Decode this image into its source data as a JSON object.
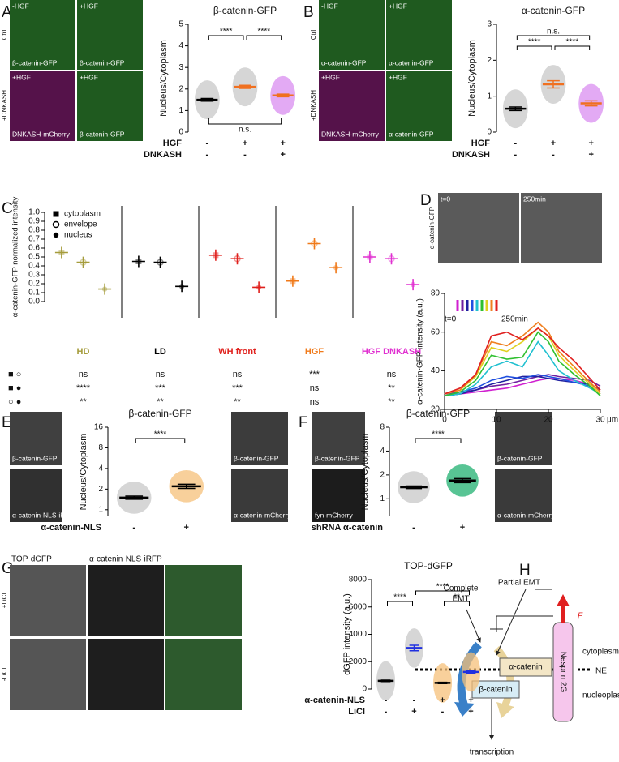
{
  "panel_labels": [
    "A",
    "B",
    "C",
    "D",
    "E",
    "F",
    "G",
    "H"
  ],
  "images": {
    "A": {
      "side": [
        "Ctrl",
        "+DNKASH"
      ],
      "tiles": [
        [
          "-HGF",
          "β-catenin-GFP"
        ],
        [
          "+HGF",
          "β-catenin-GFP"
        ],
        [
          "+HGF",
          "DNKASH-mCherry"
        ],
        [
          "+HGF",
          "β-catenin-GFP"
        ]
      ]
    },
    "B": {
      "side": [
        "Ctrl",
        "+DNKASH"
      ],
      "tiles": [
        [
          "-HGF",
          "α-catenin-GFP"
        ],
        [
          "+HGF",
          "α-catenin-GFP"
        ],
        [
          "+HGF",
          "DNKASH-mCherry"
        ],
        [
          "+HGF",
          "α-catenin-GFP"
        ]
      ]
    },
    "D": {
      "side": [
        "α-catenin-GFP"
      ],
      "tiles": [
        [
          "t=0"
        ],
        [
          "250min"
        ]
      ]
    },
    "E": {
      "tiles": [
        [
          "β-catenin-GFP"
        ],
        [
          "α-catenin-NLS-iRFP"
        ],
        [
          "β-catenin-GFP"
        ],
        [
          "α-catenin-mCherry"
        ]
      ]
    },
    "F": {
      "tiles": [
        [
          "β-catenin-GFP"
        ],
        [
          "fyn-mCherry"
        ],
        [
          "β-catenin-GFP"
        ],
        [
          "α-catenin-mCherry"
        ]
      ]
    },
    "G": {
      "headers": [
        "TOP-dGFP",
        "α-catenin-NLS-iRFP"
      ],
      "side": [
        "+LiCl",
        "-LiCl"
      ]
    }
  },
  "diagram": {
    "complete_emt": [
      "Complete",
      "EMT"
    ],
    "partial_emt": "Partial EMT",
    "force": "F",
    "nesprin": "Nesprin 2G",
    "alpha": "α-catenin",
    "beta": "β-catenin",
    "cytoplasm": "cytoplasm",
    "ne": "NE",
    "nucleoplasm": "nucleoplasm",
    "transcription": "transcription"
  },
  "chart_data": [
    {
      "type": "dotplot",
      "title": "β-catenin-GFP",
      "ylabel": "Nucleus/Cytoplasm",
      "ylim": [
        0,
        5
      ],
      "yticks": [
        0,
        1,
        2,
        3,
        4,
        5
      ],
      "values": [
        1.5,
        2.1,
        1.7
      ],
      "errors": [
        0.06,
        0.07,
        0.06
      ],
      "dot_colors": [
        "#c8c8c8",
        "#c8c8c8",
        "#d98ef0"
      ],
      "mean_colors": [
        "#000000",
        "#f07020",
        "#f07020"
      ],
      "rows": [
        {
          "name": "HGF",
          "values": [
            "-",
            "+",
            "+"
          ]
        },
        {
          "name": "DNKASH",
          "values": [
            "-",
            "-",
            "+"
          ]
        }
      ],
      "brackets": [
        {
          "from": 0,
          "to": 1,
          "label": "****"
        },
        {
          "from": 1,
          "to": 2,
          "label": "****"
        },
        {
          "from": 0,
          "to": 2,
          "label": "n.s.",
          "below": true
        }
      ]
    },
    {
      "type": "dotplot",
      "title": "α-catenin-GFP",
      "ylabel": "Nucleus/Cytoplasm",
      "ylim": [
        0,
        3
      ],
      "yticks": [
        0,
        1,
        2,
        3
      ],
      "values": [
        0.65,
        1.33,
        0.8
      ],
      "errors": [
        0.05,
        0.1,
        0.07
      ],
      "dot_colors": [
        "#c8c8c8",
        "#c8c8c8",
        "#d98ef0"
      ],
      "mean_colors": [
        "#000000",
        "#f07020",
        "#f07020"
      ],
      "rows": [
        {
          "name": "HGF",
          "values": [
            "-",
            "+",
            "+"
          ]
        },
        {
          "name": "DNKASH",
          "values": [
            "-",
            "-",
            "+"
          ]
        }
      ],
      "brackets": [
        {
          "from": 0,
          "to": 2,
          "label": "n.s."
        },
        {
          "from": 0,
          "to": 1,
          "label": "****"
        },
        {
          "from": 1,
          "to": 2,
          "label": "****"
        }
      ]
    },
    {
      "type": "dotplot_grouped",
      "ylabel": "α-catenin-GFP normalized intensity",
      "ylim": [
        0,
        1
      ],
      "yticks": [
        {
          "value": 0,
          "label": "0.0"
        },
        {
          "value": 0.1,
          "label": "0.1"
        },
        {
          "value": 0.2,
          "label": "0.2"
        },
        {
          "value": 0.3,
          "label": "0.3"
        },
        {
          "value": 0.4,
          "label": "0.4"
        },
        {
          "value": 0.5,
          "label": "0.5"
        },
        {
          "value": 0.6,
          "label": "0.6"
        },
        {
          "value": 0.7,
          "label": "0.7"
        },
        {
          "value": 0.8,
          "label": "0.8"
        },
        {
          "value": 0.9,
          "label": "0.9"
        },
        {
          "value": 1,
          "label": "1.0"
        }
      ],
      "categories": [
        "HD",
        "LD",
        "WH front",
        "HGF",
        "HGF DNKASH"
      ],
      "group_colors": [
        "#a59c3c",
        "#000000",
        "#e0201c",
        "#f07a1a",
        "#e030d0"
      ],
      "series": [
        {
          "name": "cytoplasm",
          "marker": "square",
          "values": [
            0.55,
            0.45,
            0.52,
            0.23,
            0.5
          ]
        },
        {
          "name": "envelope",
          "marker": "open-circle",
          "values": [
            0.44,
            0.44,
            0.48,
            0.65,
            0.48
          ]
        },
        {
          "name": "nucleus",
          "marker": "circle",
          "values": [
            0.14,
            0.17,
            0.16,
            0.38,
            0.19
          ]
        }
      ],
      "stats": [
        {
          "symbols": "■ ○",
          "values": [
            "ns",
            "ns",
            "ns",
            "***",
            "ns"
          ]
        },
        {
          "symbols": "■ ●",
          "values": [
            "****",
            "***",
            "***",
            "ns",
            "**"
          ]
        },
        {
          "symbols": "○ ●",
          "values": [
            "**",
            "**",
            "**",
            "ns",
            "**"
          ]
        }
      ]
    },
    {
      "type": "line",
      "ylabel": "α-catenin-GFP intensity (a.u.)",
      "xlabel": "μm",
      "legend_start": "t=0",
      "legend_end": "250min",
      "xlim": [
        0,
        30
      ],
      "xticks": [
        0,
        10,
        20,
        30
      ],
      "ylim": [
        20,
        80
      ],
      "yticks": [
        20,
        40,
        60,
        80
      ],
      "x": [
        0,
        3,
        6,
        9,
        12,
        15,
        18,
        20,
        22,
        25,
        28,
        30
      ],
      "series": [
        {
          "color": "#d020d0",
          "values": [
            27,
            28,
            29,
            30,
            31,
            33,
            35,
            36,
            36,
            35,
            33,
            30
          ]
        },
        {
          "color": "#7020a0",
          "values": [
            28,
            29,
            30,
            32,
            33,
            35,
            37,
            38,
            37,
            36,
            35,
            32
          ]
        },
        {
          "color": "#2020a0",
          "values": [
            27,
            28,
            30,
            33,
            35,
            37,
            37,
            36,
            35,
            34,
            33,
            30
          ]
        },
        {
          "color": "#2050e0",
          "values": [
            27,
            29,
            31,
            35,
            37,
            36,
            38,
            37,
            36,
            34,
            32,
            28
          ]
        },
        {
          "color": "#20c0d0",
          "values": [
            27,
            28,
            33,
            42,
            45,
            42,
            55,
            48,
            40,
            35,
            31,
            28
          ]
        },
        {
          "color": "#30c030",
          "values": [
            27,
            29,
            35,
            48,
            46,
            47,
            60,
            55,
            45,
            38,
            32,
            27
          ]
        },
        {
          "color": "#e0d020",
          "values": [
            28,
            30,
            37,
            52,
            50,
            55,
            62,
            58,
            48,
            40,
            33,
            28
          ]
        },
        {
          "color": "#f08020",
          "values": [
            28,
            30,
            38,
            55,
            53,
            58,
            65,
            60,
            50,
            42,
            34,
            29
          ]
        },
        {
          "color": "#e02020",
          "values": [
            28,
            31,
            38,
            58,
            60,
            56,
            62,
            58,
            52,
            45,
            36,
            30
          ]
        }
      ]
    },
    {
      "type": "dotplot",
      "title": "β-catenin-GFP",
      "ylabel": "Nucleus/Cytoplasm",
      "log_base": 2,
      "ylim": [
        0.8,
        16
      ],
      "yticks": [
        1,
        2,
        4,
        8,
        16
      ],
      "values": [
        1.5,
        2.2
      ],
      "errors": [
        0.08,
        0.15
      ],
      "dot_colors": [
        "#c8c8c8",
        "#f5c07a"
      ],
      "mean_colors": [
        "#000000",
        "#000000"
      ],
      "rows": [
        {
          "name": "α-catenin-NLS",
          "values": [
            "-",
            "+"
          ]
        }
      ],
      "brackets": [
        {
          "from": 0,
          "to": 1,
          "label": "****"
        }
      ]
    },
    {
      "type": "dotplot",
      "title": "β-catenin-GFP",
      "ylabel": "Nucleus/Cytoplasm",
      "log_base": 2,
      "ylim": [
        0.6,
        8
      ],
      "yticks": [
        1,
        2,
        4,
        8
      ],
      "values": [
        1.4,
        1.7
      ],
      "errors": [
        0.05,
        0.1
      ],
      "dot_colors": [
        "#c8c8c8",
        "#20b070"
      ],
      "mean_colors": [
        "#000000",
        "#000000"
      ],
      "rows": [
        {
          "name": "shRNA α-catenin",
          "values": [
            "-",
            "+"
          ]
        }
      ],
      "brackets": [
        {
          "from": 0,
          "to": 1,
          "label": "****"
        }
      ]
    },
    {
      "type": "dotplot",
      "title": "TOP-dGFP",
      "ylabel": "dGFP intensity (a.u.)",
      "ylim": [
        0,
        8000
      ],
      "yticks": [
        0,
        2000,
        4000,
        6000,
        8000
      ],
      "values": [
        600,
        3000,
        450,
        1250
      ],
      "errors": [
        50,
        200,
        50,
        100
      ],
      "dot_colors": [
        "#c8c8c8",
        "#c8c8c8",
        "#f5c07a",
        "#f5c07a"
      ],
      "mean_colors": [
        "#000000",
        "#2030e0",
        "#000000",
        "#2030e0"
      ],
      "rows": [
        {
          "name": "α-catenin-NLS",
          "values": [
            "-",
            "-",
            "+",
            "+"
          ]
        },
        {
          "name": "LiCl",
          "values": [
            "-",
            "+",
            "-",
            "+"
          ]
        }
      ],
      "brackets": [
        {
          "from": 0,
          "to": 1,
          "label": "****"
        },
        {
          "from": 1,
          "to": 3,
          "label": "****"
        },
        {
          "from": 2,
          "to": 3,
          "label": "**"
        }
      ]
    }
  ]
}
